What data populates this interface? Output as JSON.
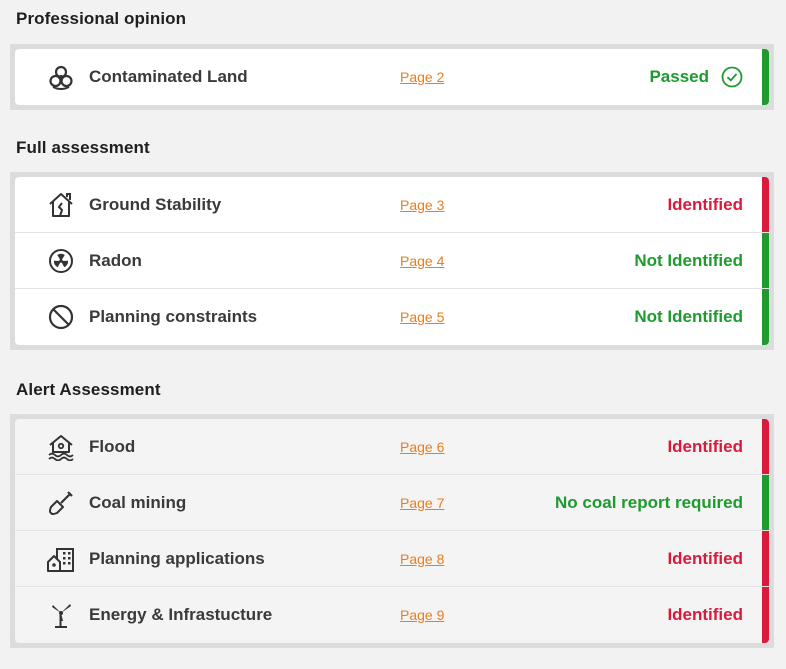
{
  "colors": {
    "green": "#1e9a2e",
    "red": "#d81b3c",
    "link": "#e67e22"
  },
  "sections": [
    {
      "title": "Professional opinion",
      "rows": [
        {
          "icon": "biohazard-icon",
          "label": "Contaminated Land",
          "page": "Page 2",
          "status": "Passed",
          "state": "green"
        }
      ]
    },
    {
      "title": "Full assessment",
      "rows": [
        {
          "icon": "house-crack-icon",
          "label": "Ground Stability",
          "page": "Page 3",
          "status": "Identified",
          "state": "red"
        },
        {
          "icon": "radiation-icon",
          "label": "Radon",
          "page": "Page 4",
          "status": "Not Identified",
          "state": "green"
        },
        {
          "icon": "prohibited-icon",
          "label": "Planning constraints",
          "page": "Page 5",
          "status": "Not Identified",
          "state": "green"
        }
      ]
    },
    {
      "title": "Alert Assessment",
      "rows": [
        {
          "icon": "flood-house-icon",
          "label": "Flood",
          "page": "Page 6",
          "status": "Identified",
          "state": "red"
        },
        {
          "icon": "shovel-icon",
          "label": "Coal mining",
          "page": "Page 7",
          "status": "No coal report required",
          "state": "green"
        },
        {
          "icon": "buildings-icon",
          "label": "Planning applications",
          "page": "Page 8",
          "status": "Identified",
          "state": "red"
        },
        {
          "icon": "wind-turbine-icon",
          "label": "Energy & Infrastucture",
          "page": "Page 9",
          "status": "Identified",
          "state": "red"
        }
      ]
    }
  ]
}
